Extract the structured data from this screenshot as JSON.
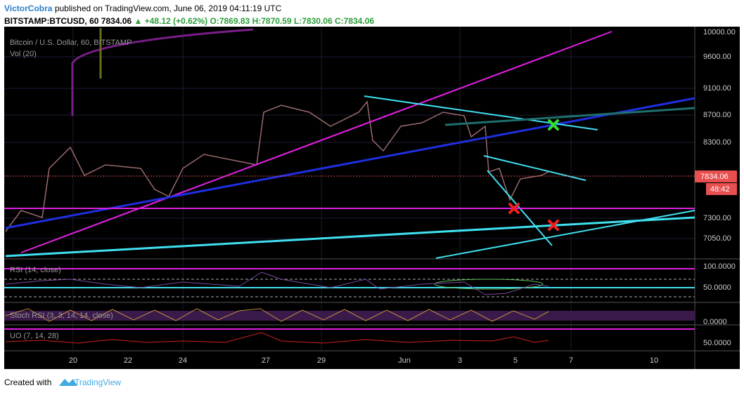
{
  "header": {
    "author": "VictorCobra",
    "published": "published on TradingView.com, June 06, 2019 04:11:19 UTC",
    "symbol": "BITSTAMP:BTCUSD, 60",
    "last": "7834.06",
    "change": "+48.12 (+0.62%)",
    "open": "O:7869.83",
    "high": "H:7870.59",
    "low": "L:7830.06",
    "close": "C:7834.06"
  },
  "legends": {
    "main": "Bitcoin / U.S. Dollar, 60, BITSTAMP",
    "volume": "Vol (20)",
    "rsi": "RSI (14, close)",
    "stoch": "Stoch RSI (3, 3, 14, 14, close)",
    "uo": "UO (7, 14, 28)"
  },
  "price_axis": [
    "10000.00",
    "9600.00",
    "9100.00",
    "8700.00",
    "8300.00",
    "7300.00",
    "7050.00"
  ],
  "price_badge": "7834.06",
  "countdown": "48:42",
  "indicator_axis": [
    "100.0000",
    "50.0000",
    "0.0000",
    "50.0000"
  ],
  "date_axis": [
    "20",
    "22",
    "24",
    "27",
    "29",
    "Jun",
    "3",
    "5",
    "7",
    "10"
  ],
  "footer": {
    "prefix": "Created with",
    "brand": "TradingView"
  }
}
